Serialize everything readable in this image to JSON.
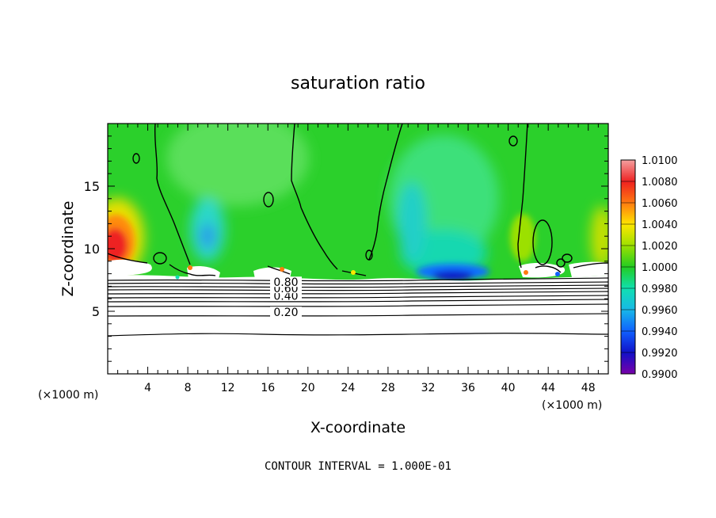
{
  "chart_data": {
    "type": "heatmap",
    "title": "saturation ratio",
    "xlabel": "X-coordinate",
    "ylabel": "Z-coordinate",
    "x_unit_left": "(×1000 m)",
    "x_unit_right": "(×1000 m)",
    "xlim": [
      0,
      50
    ],
    "ylim": [
      0,
      20
    ],
    "x_ticks": [
      4,
      8,
      12,
      16,
      20,
      24,
      28,
      32,
      36,
      40,
      44,
      48
    ],
    "y_ticks": [
      5,
      10,
      15
    ],
    "colorbar": {
      "min": 0.99,
      "max": 1.01,
      "tick_labels": [
        "1.0100",
        "1.0080",
        "1.0060",
        "1.0040",
        "1.0020",
        "1.0000",
        "0.9980",
        "0.9960",
        "0.9940",
        "0.9920",
        "0.9900"
      ],
      "colors": [
        "#f5a0a0",
        "#ee2020",
        "#ff7a10",
        "#ffe600",
        "#9ce000",
        "#22cc22",
        "#10e0b0",
        "#18b8e8",
        "#1060ff",
        "#1010c8",
        "#7a00a8"
      ]
    },
    "contour_labels": [
      {
        "text": "0.20",
        "x": 17.8,
        "y": 4.8
      },
      {
        "text": "0.40",
        "x": 17.8,
        "y": 6.1
      },
      {
        "text": "0.60",
        "x": 17.8,
        "y": 6.7
      },
      {
        "text": "0.80",
        "x": 17.8,
        "y": 7.2
      }
    ],
    "annotation": "CONTOUR INTERVAL = 1.000E-01"
  }
}
